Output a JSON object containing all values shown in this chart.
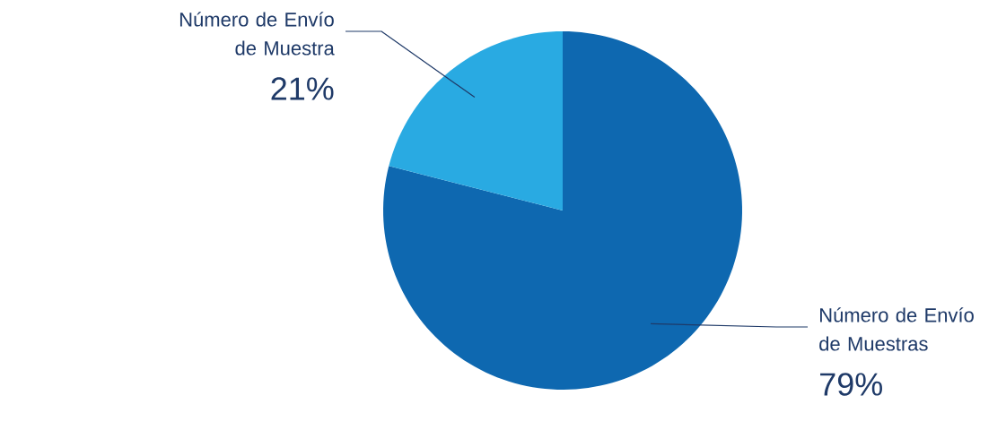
{
  "chart_data": {
    "type": "pie",
    "categories": [
      "Número de Envío de Muestras",
      "Número de Envío de Muestra"
    ],
    "values": [
      79,
      21
    ],
    "value_labels": [
      "79%",
      "21%"
    ],
    "colors": [
      "#0e68b0",
      "#29aae2"
    ]
  }
}
